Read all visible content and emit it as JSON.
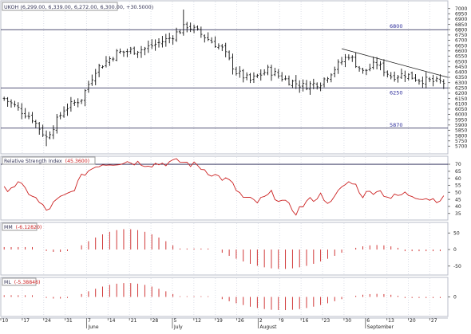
{
  "chart_data": {
    "type": "bar",
    "panels": [
      {
        "id": "price",
        "kind": "ohlc",
        "title": "UKOH (6,299.00, 6,339.00, 6,272.00, 6,300.00, +30.5000)",
        "ylim": [
          5650,
          7050
        ],
        "yticks": [
          5700,
          5750,
          5800,
          5850,
          5900,
          5950,
          6000,
          6050,
          6100,
          6150,
          6200,
          6250,
          6300,
          6350,
          6400,
          6450,
          6500,
          6550,
          6600,
          6650,
          6700,
          6750,
          6800,
          6850,
          6900,
          6950,
          7000
        ],
        "horizontal_lines": [
          {
            "value": 6800,
            "label": "6800"
          },
          {
            "value": 6250,
            "label": "6250"
          },
          {
            "value": 5870,
            "label": "5870"
          }
        ],
        "trendline": {
          "from_day": 0,
          "from_value": 6620,
          "to_day": 0,
          "to_value": 6350
        },
        "ohlc": []
      },
      {
        "id": "rsi",
        "kind": "line",
        "title": "Relative Strength Index",
        "value_label": "(45.3600)",
        "ylim": [
          32,
          74
        ],
        "yticks": [
          35,
          40,
          45,
          50,
          55,
          60,
          65,
          70
        ],
        "reference_line": 70,
        "color": "#cc2222",
        "values": []
      },
      {
        "id": "mm",
        "kind": "histogram",
        "title": "MM",
        "value_label": "(-6.12820)",
        "ylim": [
          -70,
          75
        ],
        "yticks": [
          -50,
          0,
          50
        ],
        "color": "#cc2222",
        "values": []
      },
      {
        "id": "ml",
        "kind": "histogram",
        "title": "ML",
        "value_label": "(-5.38846)",
        "ylim": [
          -8,
          8
        ],
        "yticks": [
          0
        ],
        "color": "#cc2222",
        "values": []
      }
    ],
    "x_axis": {
      "tick_labels": [
        "10",
        "17",
        "24",
        "31",
        "7",
        "14",
        "21",
        "28",
        "5",
        "12",
        "19",
        "26",
        "2",
        "9",
        "16",
        "23",
        "30",
        "6",
        "13",
        "20",
        "27"
      ],
      "month_labels": [
        {
          "text": "June",
          "at_tick": 4
        },
        {
          "text": "July",
          "at_tick": 8
        },
        {
          "text": "August",
          "at_tick": 12
        },
        {
          "text": "September",
          "at_tick": 17
        }
      ]
    }
  }
}
